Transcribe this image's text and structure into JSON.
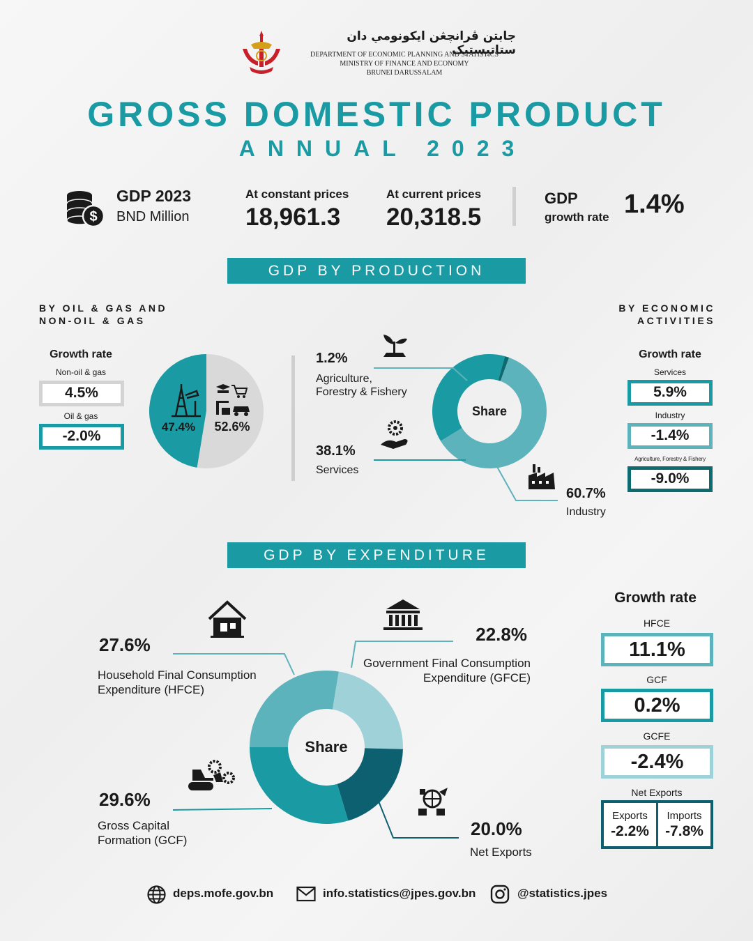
{
  "header": {
    "jawi": "جابتن ڤرانچڠن ايكونومي دان ستاتيستيک",
    "dept_lines": [
      "DEPARTMENT OF ECONOMIC PLANNING AND STATISTICS",
      "MINISTRY OF FINANCE AND ECONOMY",
      "BRUNEI DARUSSALAM"
    ],
    "title": "GROSS DOMESTIC PRODUCT",
    "subtitle": "ANNUAL 2023"
  },
  "summary": {
    "gdp_label": "GDP 2023",
    "gdp_unit": "BND Million",
    "constant_label": "At constant prices",
    "constant_value": "18,961.3",
    "current_label": "At current prices",
    "current_value": "20,318.5",
    "growth_label": "GDP",
    "growth_sub": "growth rate",
    "growth_value": "1.4%"
  },
  "production": {
    "banner": "GDP BY PRODUCTION",
    "left_heading": [
      "BY OIL & GAS AND",
      "NON-OIL & GAS"
    ],
    "right_heading": [
      "BY ECONOMIC",
      "ACTIVITIES"
    ],
    "left_growth": {
      "title": "Growth rate",
      "items": [
        {
          "label": "Non-oil & gas",
          "value": "4.5%"
        },
        {
          "label": "Oil & gas",
          "value": "-2.0%"
        }
      ]
    },
    "right_growth": {
      "title": "Growth rate",
      "items": [
        {
          "label": "Services",
          "value": "5.9%"
        },
        {
          "label": "Industry",
          "value": "-1.4%"
        },
        {
          "label": "Agriculture, Forestry & Fishery",
          "value": "-9.0%"
        }
      ]
    },
    "pie_labels": {
      "oil": "47.4%",
      "nonoil": "52.6%"
    },
    "donut_center": "Share",
    "callouts": {
      "agri_pct": "1.2%",
      "agri_label_1": "Agriculture,",
      "agri_label_2": "Forestry & Fishery",
      "serv_pct": "38.1%",
      "serv_label": "Services",
      "ind_pct": "60.7%",
      "ind_label": "Industry"
    }
  },
  "expenditure": {
    "banner": "GDP BY EXPENDITURE",
    "donut_center": "Share",
    "callouts": {
      "hfce_pct": "27.6%",
      "hfce_label_1": "Household Final Consumption",
      "hfce_label_2": "Expenditure (HFCE)",
      "gfce_pct": "22.8%",
      "gfce_label_1": "Government Final Consumption",
      "gfce_label_2": "Expenditure (GFCE)",
      "gcf_pct": "29.6%",
      "gcf_label_1": "Gross Capital",
      "gcf_label_2": "Formation (GCF)",
      "nx_pct": "20.0%",
      "nx_label": "Net Exports"
    },
    "growth": {
      "title": "Growth rate",
      "hfce_label": "HFCE",
      "hfce_value": "11.1%",
      "gcf_label": "GCF",
      "gcf_value": "0.2%",
      "gcfe_label": "GCFE",
      "gcfe_value": "-2.4%",
      "nx_label": "Net Exports",
      "exports_label": "Exports",
      "exports_value": "-2.2%",
      "imports_label": "Imports",
      "imports_value": "-7.8%"
    }
  },
  "footer": {
    "website": "deps.mofe.gov.bn",
    "email": "info.statistics@jpes.gov.bn",
    "instagram": "@statistics.jpes"
  },
  "colors": {
    "teal": "#1a9aa3",
    "teal_dark": "#0d6b70",
    "teal_mid": "#5db3bb",
    "teal_light": "#9fd1d8",
    "grey": "#d9d9d9"
  },
  "chart_data": [
    {
      "type": "pie",
      "categories": [
        "Oil & gas",
        "Non-oil & gas"
      ],
      "values": [
        47.4,
        52.6
      ]
    },
    {
      "type": "pie",
      "categories": [
        "Agriculture, Forestry & Fishery",
        "Services",
        "Industry"
      ],
      "values": [
        1.2,
        38.1,
        60.7
      ]
    },
    {
      "type": "pie",
      "categories": [
        "HFCE",
        "GFCE",
        "Net Exports",
        "GCF"
      ],
      "values": [
        27.6,
        22.8,
        20.0,
        29.6
      ]
    }
  ]
}
